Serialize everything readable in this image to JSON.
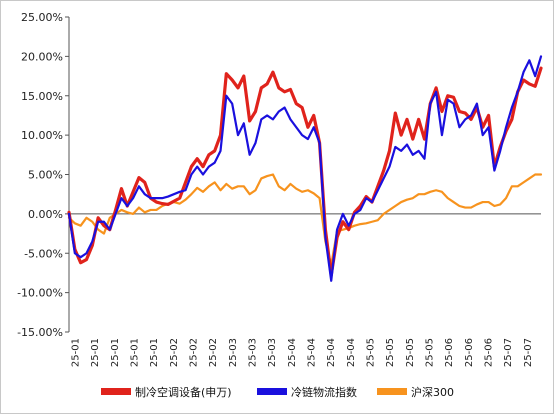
{
  "chart_data": {
    "type": "line",
    "title": "",
    "xlabel": "",
    "ylabel": "",
    "ylim": [
      -15,
      25
    ],
    "y_ticks": [
      -15,
      -10,
      -5,
      0,
      5,
      10,
      15,
      20,
      25
    ],
    "y_tick_labels": [
      "-15.00%",
      "-10.00%",
      "-5.00%",
      "0.00%",
      "5.00%",
      "10.00%",
      "15.00%",
      "20.00%",
      "25.00%"
    ],
    "x_tick_labels": [
      "25-01",
      "25-01",
      "25-01",
      "25-01",
      "25-01",
      "25-02",
      "25-02",
      "25-02",
      "25-03",
      "25-03",
      "25-03",
      "25-04",
      "25-04",
      "25-04",
      "25-04",
      "25-05",
      "25-05",
      "25-05",
      "25-05",
      "25-06",
      "25-06",
      "25-06",
      "25-07",
      "25-07"
    ],
    "grid": false,
    "legend_position": "bottom",
    "colors": {
      "s1": "#e0231c",
      "s2": "#1a10de",
      "s3": "#f7931e"
    },
    "series": [
      {
        "name": "制冷空调设备(申万)",
        "values": [
          0.2,
          -4.5,
          -6.2,
          -5.8,
          -4.0,
          -0.5,
          -1.5,
          -2.0,
          0.5,
          3.2,
          1.0,
          2.8,
          4.6,
          4.0,
          2.0,
          1.5,
          1.3,
          1.2,
          1.6,
          2.0,
          4.0,
          6.0,
          7.0,
          6.0,
          7.5,
          8.0,
          10.0,
          17.8,
          17.0,
          16.0,
          17.5,
          11.8,
          13.0,
          16.0,
          16.5,
          18.0,
          16.0,
          15.5,
          15.8,
          14.0,
          13.5,
          11.0,
          12.5,
          9.0,
          -2.0,
          -7.8,
          -3.0,
          -1.0,
          -2.0,
          0.2,
          1.0,
          2.2,
          1.5,
          3.5,
          5.5,
          8.0,
          12.8,
          10.0,
          12.0,
          9.5,
          12.0,
          9.5,
          14.0,
          16.0,
          13.0,
          15.0,
          14.8,
          13.0,
          12.8,
          12.0,
          13.5,
          11.0,
          12.5,
          6.0,
          8.5,
          10.5,
          12.0,
          15.5,
          17.0,
          16.5,
          16.2,
          18.5
        ]
      },
      {
        "name": "冷链物流指数",
        "values": [
          0.0,
          -5.0,
          -5.5,
          -5.0,
          -3.5,
          -1.0,
          -1.0,
          -2.0,
          0.0,
          2.0,
          1.0,
          2.0,
          3.5,
          2.5,
          2.0,
          2.0,
          2.0,
          2.2,
          2.5,
          2.8,
          3.0,
          5.0,
          6.0,
          5.0,
          6.0,
          6.5,
          8.0,
          15.0,
          14.0,
          10.0,
          11.5,
          7.5,
          9.0,
          12.0,
          12.5,
          12.0,
          13.0,
          13.5,
          12.0,
          11.0,
          10.0,
          9.5,
          11.0,
          9.0,
          -3.0,
          -8.5,
          -2.0,
          0.0,
          -1.5,
          0.0,
          0.5,
          2.0,
          1.5,
          3.0,
          4.5,
          6.0,
          8.5,
          8.0,
          8.8,
          7.5,
          8.0,
          7.0,
          14.0,
          15.5,
          10.0,
          14.5,
          14.0,
          11.0,
          12.0,
          12.5,
          14.0,
          10.0,
          11.0,
          5.5,
          8.0,
          11.0,
          13.5,
          15.5,
          18.0,
          19.5,
          17.5,
          20.0
        ]
      },
      {
        "name": "沪深300",
        "values": [
          -0.5,
          -1.2,
          -1.5,
          -0.5,
          -1.0,
          -2.0,
          -2.5,
          -0.5,
          0.0,
          0.5,
          0.2,
          0.0,
          0.8,
          0.2,
          0.5,
          0.5,
          1.0,
          1.3,
          1.5,
          1.3,
          1.8,
          2.5,
          3.3,
          2.8,
          3.5,
          4.0,
          3.0,
          3.8,
          3.2,
          3.5,
          3.5,
          2.5,
          3.0,
          4.5,
          4.8,
          5.0,
          3.5,
          3.0,
          3.8,
          3.2,
          2.8,
          3.0,
          2.6,
          2.0,
          -3.5,
          -6.5,
          -2.2,
          -2.0,
          -1.8,
          -1.5,
          -1.3,
          -1.2,
          -1.0,
          -0.8,
          0.0,
          0.5,
          1.0,
          1.5,
          1.8,
          2.0,
          2.5,
          2.5,
          2.8,
          3.0,
          2.8,
          2.0,
          1.5,
          1.0,
          0.8,
          0.8,
          1.2,
          1.5,
          1.5,
          1.0,
          1.2,
          2.0,
          3.5,
          3.5,
          4.0,
          4.5,
          5.0,
          5.0
        ]
      }
    ]
  }
}
